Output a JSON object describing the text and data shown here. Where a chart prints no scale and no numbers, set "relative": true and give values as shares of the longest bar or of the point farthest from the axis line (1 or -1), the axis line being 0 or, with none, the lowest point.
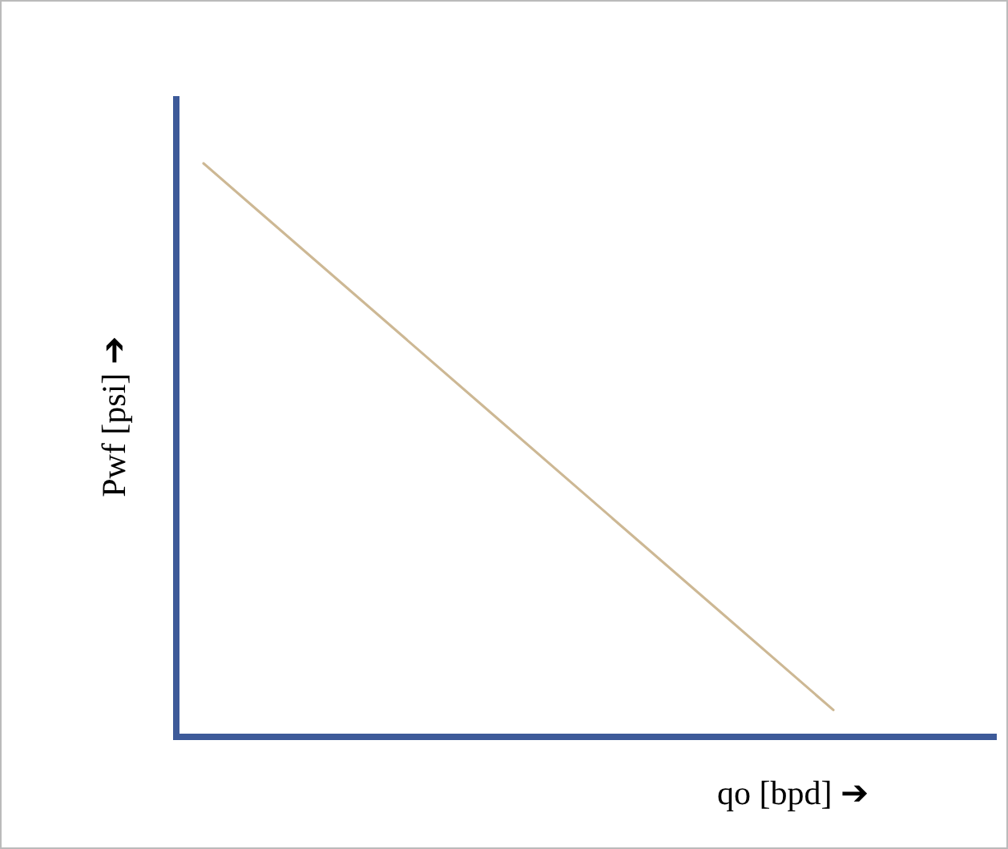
{
  "chart_data": {
    "type": "line",
    "xlabel": "qo [bpd] ➔",
    "ylabel": "Pwf [psi] ➔",
    "relative": true,
    "categories": [
      null,
      null
    ],
    "series": [
      {
        "color": "#cdb894",
        "values": [
          1,
          0.047
        ]
      }
    ]
  }
}
